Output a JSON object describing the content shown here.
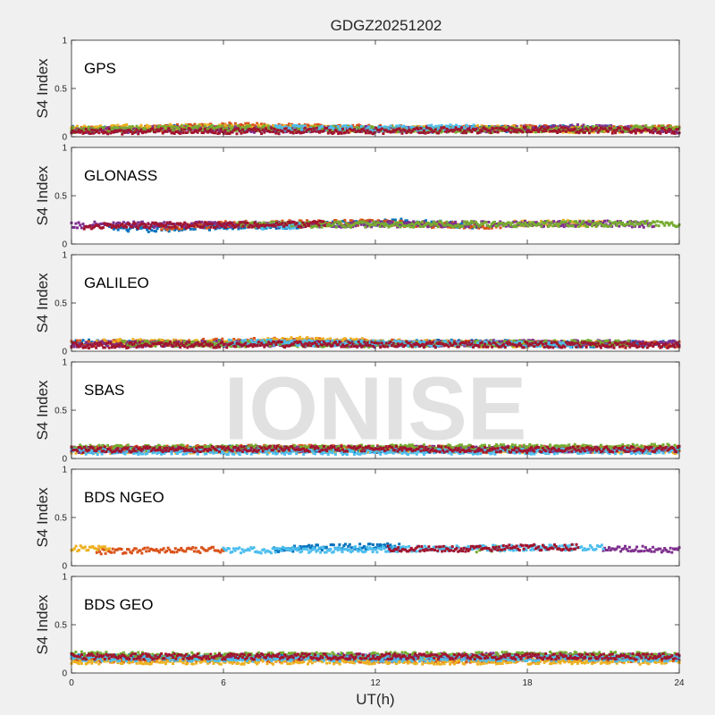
{
  "title": "GDGZ20251202",
  "watermark": "IONISE",
  "colors": [
    "#0072BD",
    "#D95319",
    "#EDB120",
    "#7E2F8E",
    "#77AC30",
    "#4DBEEE",
    "#A2142F"
  ],
  "chart_data": {
    "type": "scatter",
    "title": "GDGZ20251202",
    "xlabel": "UT(h)",
    "ylabel": "S4 Index",
    "xlim": [
      0,
      24
    ],
    "ylim": [
      0,
      1
    ],
    "xticks": [
      0,
      6,
      12,
      18,
      24
    ],
    "xtick_labels": [
      "0",
      "6",
      "12",
      "18",
      "24"
    ],
    "yticks": [
      0,
      0.5,
      1
    ],
    "ytick_labels": [
      "0",
      "0.5",
      "1"
    ],
    "grid": false,
    "panels": [
      {
        "name": "GPS",
        "series": [
          {
            "values": [
              [
                0,
                0.08
              ],
              [
                2,
                0.07
              ],
              [
                4,
                0.09
              ],
              [
                6,
                0.1
              ],
              [
                8,
                0.08
              ],
              [
                10,
                0.09
              ],
              [
                12,
                0.08
              ],
              [
                14,
                0.07
              ],
              [
                16,
                0.08
              ],
              [
                18,
                0.08
              ],
              [
                20,
                0.09
              ],
              [
                22,
                0.08
              ],
              [
                24,
                0.08
              ]
            ]
          },
          {
            "values": [
              [
                0,
                0.07
              ],
              [
                3,
                0.08
              ],
              [
                6,
                0.12
              ],
              [
                9,
                0.1
              ],
              [
                12,
                0.09
              ],
              [
                15,
                0.08
              ],
              [
                18,
                0.09
              ],
              [
                21,
                0.08
              ],
              [
                24,
                0.09
              ]
            ]
          },
          {
            "values": [
              [
                0,
                0.09
              ],
              [
                4,
                0.1
              ],
              [
                8,
                0.09
              ],
              [
                12,
                0.07
              ],
              [
                16,
                0.09
              ],
              [
                20,
                0.07
              ],
              [
                24,
                0.07
              ]
            ]
          },
          {
            "values": [
              [
                0,
                0.06
              ],
              [
                4,
                0.08
              ],
              [
                8,
                0.07
              ],
              [
                12,
                0.08
              ],
              [
                16,
                0.07
              ],
              [
                20,
                0.1
              ],
              [
                24,
                0.06
              ]
            ]
          },
          {
            "values": [
              [
                0,
                0.07
              ],
              [
                6,
                0.09
              ],
              [
                12,
                0.08
              ],
              [
                18,
                0.07
              ],
              [
                24,
                0.09
              ]
            ]
          },
          {
            "values": [
              [
                8,
                0.09
              ],
              [
                12,
                0.08
              ],
              [
                16,
                0.1
              ]
            ]
          },
          {
            "values": [
              [
                0,
                0.05
              ],
              [
                6,
                0.06
              ],
              [
                12,
                0.06
              ],
              [
                18,
                0.07
              ],
              [
                24,
                0.06
              ]
            ]
          }
        ]
      },
      {
        "name": "GLONASS",
        "series": [
          {
            "values": [
              [
                1.5,
                0.17
              ],
              [
                3,
                0.15
              ],
              [
                4.5,
                0.17
              ],
              [
                10,
                0.2
              ],
              [
                11,
                0.21
              ],
              [
                13,
                0.23
              ],
              [
                16,
                0.19
              ]
            ]
          },
          {
            "values": [
              [
                3.5,
                0.17
              ],
              [
                5,
                0.19
              ],
              [
                6.5,
                0.21
              ],
              [
                12,
                0.22
              ],
              [
                14,
                0.2
              ],
              [
                17,
                0.19
              ]
            ]
          },
          {
            "values": [
              [
                17.5,
                0.21
              ],
              [
                19,
                0.22
              ],
              [
                21,
                0.21
              ]
            ]
          },
          {
            "values": [
              [
                0,
                0.19
              ],
              [
                1,
                0.2
              ],
              [
                5.5,
                0.2
              ],
              [
                21.5,
                0.21
              ],
              [
                23,
                0.2
              ]
            ]
          },
          {
            "values": [
              [
                6.5,
                0.2
              ],
              [
                8,
                0.2
              ],
              [
                23,
                0.21
              ],
              [
                24,
                0.2
              ]
            ]
          },
          {
            "values": [
              [
                7.5,
                0.18
              ],
              [
                9,
                0.19
              ]
            ]
          },
          {
            "values": [
              [
                0.5,
                0.18
              ],
              [
                1.5,
                0.19
              ],
              [
                9,
                0.2
              ],
              [
                10,
                0.21
              ]
            ]
          }
        ]
      },
      {
        "name": "GALILEO",
        "series": [
          {
            "values": [
              [
                0,
                0.09
              ],
              [
                4,
                0.08
              ],
              [
                8,
                0.09
              ],
              [
                12,
                0.08
              ],
              [
                16,
                0.09
              ],
              [
                20,
                0.07
              ],
              [
                24,
                0.08
              ]
            ]
          },
          {
            "values": [
              [
                0,
                0.08
              ],
              [
                4,
                0.09
              ],
              [
                8,
                0.11
              ],
              [
                12,
                0.09
              ],
              [
                16,
                0.08
              ],
              [
                20,
                0.08
              ],
              [
                24,
                0.07
              ]
            ]
          },
          {
            "values": [
              [
                1,
                0.1
              ],
              [
                6,
                0.08
              ],
              [
                9,
                0.12
              ],
              [
                13,
                0.09
              ],
              [
                17,
                0.07
              ],
              [
                21,
                0.08
              ]
            ]
          },
          {
            "values": [
              [
                0,
                0.07
              ],
              [
                6,
                0.08
              ],
              [
                12,
                0.07
              ],
              [
                18,
                0.09
              ],
              [
                24,
                0.08
              ]
            ]
          },
          {
            "values": [
              [
                2,
                0.08
              ],
              [
                10,
                0.07
              ],
              [
                22,
                0.09
              ]
            ]
          },
          {
            "values": [
              [
                6,
                0.09
              ],
              [
                14,
                0.08
              ],
              [
                20,
                0.07
              ]
            ]
          },
          {
            "values": [
              [
                0,
                0.06
              ],
              [
                8,
                0.07
              ],
              [
                16,
                0.07
              ],
              [
                24,
                0.06
              ]
            ]
          }
        ]
      },
      {
        "name": "SBAS",
        "series": [
          {
            "values": [
              [
                0,
                0.09
              ],
              [
                6,
                0.1
              ],
              [
                12,
                0.09
              ],
              [
                18,
                0.09
              ],
              [
                24,
                0.09
              ]
            ]
          },
          {
            "values": [
              [
                0,
                0.1
              ],
              [
                8,
                0.11
              ],
              [
                16,
                0.1
              ],
              [
                24,
                0.1
              ]
            ]
          },
          {
            "values": [
              [
                0,
                0.08
              ],
              [
                12,
                0.09
              ],
              [
                24,
                0.08
              ]
            ]
          },
          {
            "values": [
              [
                0,
                0.09
              ],
              [
                12,
                0.1
              ],
              [
                24,
                0.09
              ]
            ]
          },
          {
            "values": [
              [
                0,
                0.11
              ],
              [
                12,
                0.11
              ],
              [
                24,
                0.12
              ]
            ]
          },
          {
            "values": [
              [
                0,
                0.07
              ],
              [
                12,
                0.07
              ],
              [
                24,
                0.08
              ]
            ]
          },
          {
            "values": [
              [
                0,
                0.09
              ],
              [
                6,
                0.1
              ],
              [
                12,
                0.1
              ],
              [
                18,
                0.09
              ],
              [
                24,
                0.1
              ]
            ]
          }
        ]
      },
      {
        "name": "BDS NGEO",
        "series": [
          {
            "values": [
              [
                8,
                0.17
              ],
              [
                10,
                0.19
              ],
              [
                12,
                0.2
              ],
              [
                13,
                0.21
              ]
            ]
          },
          {
            "values": [
              [
                1,
                0.15
              ],
              [
                3,
                0.16
              ],
              [
                5,
                0.16
              ],
              [
                6,
                0.17
              ]
            ]
          },
          {
            "values": [
              [
                0,
                0.18
              ],
              [
                1.5,
                0.17
              ]
            ]
          },
          {
            "values": [
              [
                21,
                0.18
              ],
              [
                23,
                0.17
              ],
              [
                24,
                0.16
              ]
            ]
          },
          {
            "values": [
              [
                16,
                0.17
              ],
              [
                17,
                0.18
              ]
            ]
          },
          {
            "values": [
              [
                6,
                0.16
              ],
              [
                7.5,
                0.16
              ],
              [
                20,
                0.19
              ],
              [
                21,
                0.19
              ]
            ]
          },
          {
            "values": [
              [
                12.5,
                0.18
              ],
              [
                15,
                0.17
              ],
              [
                18,
                0.19
              ],
              [
                20,
                0.19
              ]
            ]
          }
        ]
      },
      {
        "name": "BDS GEO",
        "series": [
          {
            "values": [
              [
                0,
                0.16
              ],
              [
                12,
                0.16
              ],
              [
                24,
                0.16
              ]
            ]
          },
          {
            "values": [
              [
                0,
                0.14
              ],
              [
                12,
                0.14
              ],
              [
                24,
                0.14
              ]
            ]
          },
          {
            "values": [
              [
                0,
                0.12
              ],
              [
                12,
                0.12
              ],
              [
                24,
                0.12
              ]
            ]
          },
          {
            "values": [
              [
                6,
                0.17
              ],
              [
                12,
                0.17
              ],
              [
                18,
                0.18
              ],
              [
                24,
                0.17
              ]
            ]
          },
          {
            "values": [
              [
                0,
                0.19
              ],
              [
                6,
                0.18
              ],
              [
                22,
                0.19
              ],
              [
                24,
                0.18
              ]
            ]
          },
          {
            "values": [
              [
                0,
                0.15
              ],
              [
                24,
                0.15
              ]
            ]
          },
          {
            "values": [
              [
                0,
                0.17
              ],
              [
                24,
                0.17
              ]
            ]
          }
        ]
      }
    ]
  }
}
